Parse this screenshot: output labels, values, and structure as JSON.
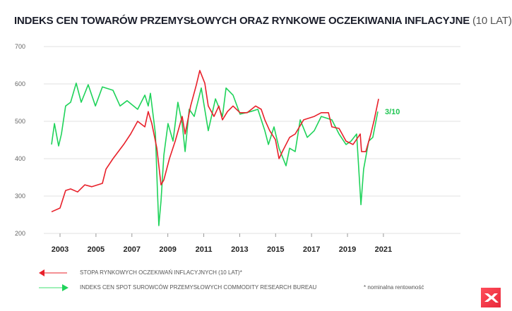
{
  "title": {
    "main": "INDEKS CEN TOWARÓW PRZEMYSŁOWYCH ORAZ RYNKOWE OCZEKIWANIA INFLACYJNE",
    "sub": "(10 LAT)"
  },
  "legend": {
    "red": "STOPA RYNKOWYCH OCZEKIWAŃ INFLACYJNYCH (10 LAT)*",
    "green": "INDEKS CEN SPOT SUROWCÓW PRZEMYSŁOWYCH COMMODITY RESEARCH BUREAU"
  },
  "note": "* nominalna rentowność",
  "annotation": "3/10",
  "colors": {
    "red": "#e8202a",
    "green": "#1fd35a",
    "grid": "#e6e6e6",
    "annotation": "#1fc552",
    "logo": "#f0303f"
  },
  "chart_data": {
    "type": "line",
    "title": "INDEKS CEN TOWARÓW PRZEMYSŁOWYCH ORAZ RYNKOWE OCZEKIWANIA INFLACYJNE (10 LAT)",
    "xlabel": "",
    "ylabel": "",
    "xlim": [
      2002.2,
      2023.2
    ],
    "ylim": [
      200,
      700
    ],
    "yticks": [
      200,
      300,
      400,
      500,
      600,
      700
    ],
    "xticks": [
      2003,
      2005,
      2007,
      2009,
      2011,
      2013,
      2015,
      2017,
      2019,
      2021
    ],
    "grid": "horizontal",
    "legend_position": "bottom",
    "series": [
      {
        "name": "STOPA RYNKOWYCH OCZEKIWAŃ INFLACYJNYCH (10 LAT)*",
        "color": "#e8202a",
        "x": [
          2002.53,
          2003.0,
          2003.31,
          2003.59,
          2003.98,
          2004.38,
          2004.77,
          2005.36,
          2005.56,
          2005.95,
          2006.54,
          2006.93,
          2007.32,
          2007.72,
          2007.91,
          2008.11,
          2008.39,
          2008.62,
          2008.78,
          2009.09,
          2009.41,
          2009.8,
          2009.96,
          2010.27,
          2010.59,
          2010.78,
          2011.06,
          2011.25,
          2011.57,
          2011.84,
          2012.04,
          2012.32,
          2012.63,
          2013.02,
          2013.42,
          2013.89,
          2014.2,
          2014.4,
          2014.67,
          2014.99,
          2015.19,
          2015.38,
          2015.78,
          2016.09,
          2016.56,
          2017.15,
          2017.54,
          2017.94,
          2018.13,
          2018.53,
          2018.92,
          2019.31,
          2019.71,
          2019.78,
          2020.02,
          2020.3,
          2020.49,
          2020.73
        ],
        "y": [
          258,
          268,
          315,
          319,
          311,
          330,
          325,
          334,
          372,
          400,
          438,
          466,
          500,
          485,
          526,
          494,
          428,
          330,
          343,
          400,
          447,
          513,
          466,
          541,
          598,
          636,
          602,
          541,
          513,
          541,
          504,
          526,
          541,
          523,
          523,
          541,
          532,
          504,
          475,
          451,
          400,
          419,
          457,
          466,
          504,
          513,
          523,
          523,
          485,
          481,
          447,
          438,
          466,
          419,
          419,
          466,
          504,
          560
        ]
      },
      {
        "name": "INDEKS CEN SPOT SUROWCÓW PRZEMYSŁOWYCH COMMODITY RESEARCH BUREAU",
        "color": "#1fd35a",
        "x": [
          2002.53,
          2002.69,
          2002.92,
          2003.08,
          2003.31,
          2003.59,
          2003.9,
          2004.18,
          2004.57,
          2004.97,
          2005.36,
          2005.95,
          2006.34,
          2006.73,
          2007.32,
          2007.72,
          2007.91,
          2008.03,
          2008.31,
          2008.42,
          2008.5,
          2008.62,
          2008.78,
          2009.01,
          2009.29,
          2009.56,
          2009.8,
          2009.96,
          2010.19,
          2010.47,
          2010.86,
          2011.25,
          2011.65,
          2012.04,
          2012.24,
          2012.63,
          2013.02,
          2013.61,
          2014.01,
          2014.4,
          2014.6,
          2014.91,
          2015.19,
          2015.58,
          2015.78,
          2016.09,
          2016.37,
          2016.76,
          2017.15,
          2017.54,
          2018.13,
          2018.53,
          2018.92,
          2019.2,
          2019.51,
          2019.75,
          2019.9,
          2020.18,
          2020.41,
          2020.69
        ],
        "y": [
          438,
          494,
          434,
          466,
          541,
          551,
          602,
          551,
          598,
          541,
          592,
          583,
          541,
          555,
          532,
          570,
          541,
          575,
          466,
          315,
          221,
          287,
          409,
          494,
          447,
          551,
          494,
          419,
          532,
          513,
          589,
          475,
          560,
          513,
          589,
          570,
          519,
          526,
          532,
          475,
          438,
          485,
          428,
          381,
          428,
          419,
          504,
          457,
          475,
          513,
          504,
          466,
          438,
          447,
          466,
          277,
          372,
          447,
          457,
          526
        ]
      }
    ]
  }
}
